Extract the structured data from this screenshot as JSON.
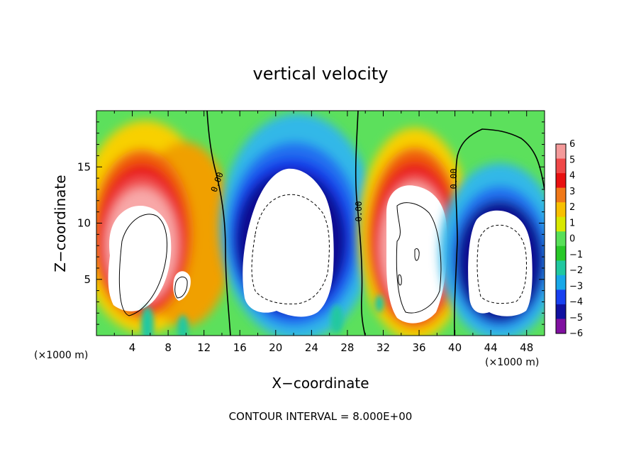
{
  "chart_data": {
    "type": "heatmap",
    "title": "vertical velocity",
    "xlabel": "X−coordinate",
    "ylabel": "Z−coordinate",
    "x_unit_label": "(×1000 m)",
    "x_unit_label_right": "(×1000 m)",
    "xlim": [
      0,
      50
    ],
    "ylim": [
      0,
      20
    ],
    "x_ticks": [
      "4",
      "8",
      "12",
      "16",
      "20",
      "24",
      "28",
      "32",
      "36",
      "40",
      "44",
      "48"
    ],
    "y_ticks": [
      "5",
      "10",
      "15"
    ],
    "colorbar": {
      "levels": [
        "6",
        "5",
        "4",
        "3",
        "2",
        "1",
        "0",
        "−1",
        "−2",
        "−3",
        "−4",
        "−5",
        "−6"
      ],
      "colors": [
        "#f49a9a",
        "#f04848",
        "#e81010",
        "#f07818",
        "#f8c000",
        "#d8e800",
        "#58e058",
        "#28c828",
        "#20c8a0",
        "#18a8e8",
        "#1840f0",
        "#1010a0",
        "#8010a0"
      ]
    },
    "contour_labels": [
      "0.00",
      "0.00",
      "0.00"
    ],
    "footnote": "CONTOUR INTERVAL = 8.000E+00",
    "cells": [
      {
        "x": 5,
        "z": 8,
        "w": "strong updraft (above 6)"
      },
      {
        "x": 22,
        "z": 8,
        "w": "strong downdraft (below −6)"
      },
      {
        "x": 34,
        "z": 8,
        "w": "strong updraft (above 6)"
      },
      {
        "x": 46,
        "z": 6,
        "w": "strong downdraft (below −6)"
      }
    ]
  }
}
